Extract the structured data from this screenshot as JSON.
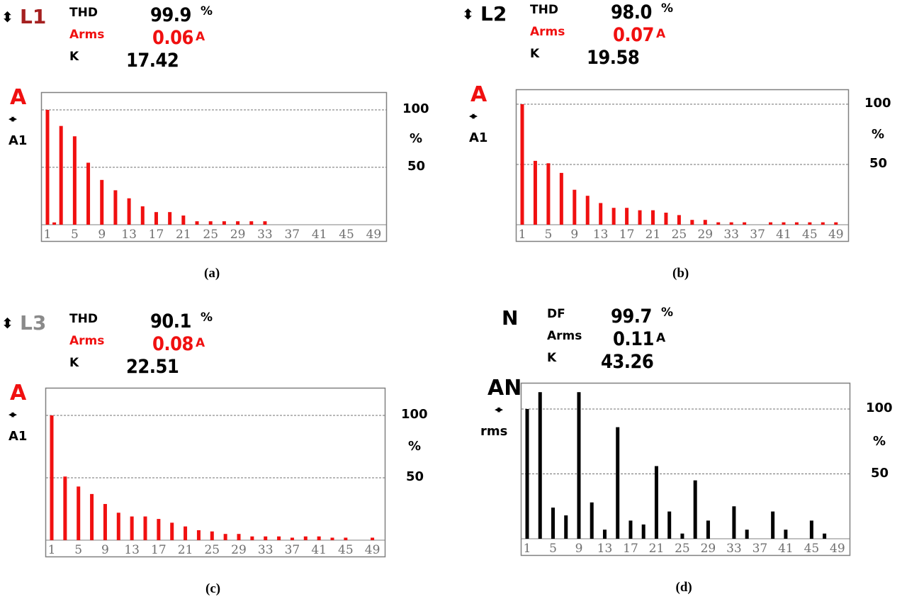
{
  "colors": {
    "red": "#f01010",
    "black": "#000000",
    "frame": "#808080",
    "tick": "#707070",
    "l1": "#a52020",
    "l3": "#8a8a8a"
  },
  "x_tick_labels": [
    "1",
    "5",
    "9",
    "13",
    "17",
    "21",
    "25",
    "29",
    "33",
    "37",
    "41",
    "45",
    "49"
  ],
  "panels": [
    {
      "caption": "(a)",
      "phase": "L1",
      "arrow": "⬍",
      "m1_label": "THD",
      "m1_value": "99.9",
      "m1_unit": "%",
      "m2_label": "Arms",
      "m2_value": "0.06",
      "m2_unit": "A",
      "m3_label": "K",
      "m3_value": "17.42",
      "ch_label": "A",
      "nav_icon": "◂▸",
      "sub_label": "A1",
      "y_top": "100",
      "y_unit": "%",
      "y_mid": "50"
    },
    {
      "caption": "(b)",
      "phase": "L2",
      "arrow": "⬍",
      "m1_label": "THD",
      "m1_value": "98.0",
      "m1_unit": "%",
      "m2_label": "Arms",
      "m2_value": "0.07",
      "m2_unit": "A",
      "m3_label": "K",
      "m3_value": "19.58",
      "ch_label": "A",
      "nav_icon": "◂▸",
      "sub_label": "A1",
      "y_top": "100",
      "y_unit": "%",
      "y_mid": "50"
    },
    {
      "caption": "(c)",
      "phase": "L3",
      "arrow": "⬍",
      "m1_label": "THD",
      "m1_value": "90.1",
      "m1_unit": "%",
      "m2_label": "Arms",
      "m2_value": "0.08",
      "m2_unit": "A",
      "m3_label": "K",
      "m3_value": "22.51",
      "ch_label": "A",
      "nav_icon": "◂▸",
      "sub_label": "A1",
      "y_top": "100",
      "y_unit": "%",
      "y_mid": "50"
    },
    {
      "caption": "(d)",
      "phase": "N",
      "arrow": "",
      "m1_label": "DF",
      "m1_value": "99.7",
      "m1_unit": "%",
      "m2_label": "Arms",
      "m2_value": "0.11",
      "m2_unit": "A",
      "m3_label": "K",
      "m3_value": "43.26",
      "ch_label": "AN",
      "nav_icon": "◂▸",
      "sub_label": "rms",
      "y_top": "100",
      "y_unit": "%",
      "y_mid": "50"
    }
  ],
  "chart_data": [
    {
      "type": "bar",
      "xlabel": "",
      "ylabel": "%",
      "ylim": [
        0,
        115
      ],
      "grid_lines": [
        50,
        100
      ],
      "categories": [
        1,
        2,
        3,
        5,
        7,
        9,
        11,
        13,
        15,
        17,
        19,
        21,
        23,
        25,
        27,
        29,
        31,
        33
      ],
      "values": [
        100,
        2,
        86,
        77,
        54,
        39,
        30,
        23,
        16,
        11,
        11,
        8,
        3,
        3,
        3,
        3,
        3,
        3
      ]
    },
    {
      "type": "bar",
      "xlabel": "",
      "ylabel": "%",
      "ylim": [
        0,
        103
      ],
      "grid_lines": [
        50,
        100
      ],
      "categories": [
        1,
        3,
        5,
        7,
        9,
        11,
        13,
        15,
        17,
        19,
        21,
        23,
        25,
        27,
        29,
        31,
        33,
        35,
        39,
        41,
        43,
        45,
        47,
        49
      ],
      "values": [
        100,
        53,
        51,
        43,
        29,
        24,
        18,
        14,
        14,
        12,
        12,
        10,
        8,
        4,
        4,
        2,
        2,
        2,
        2,
        2,
        2,
        2,
        2,
        2
      ]
    },
    {
      "type": "bar",
      "xlabel": "",
      "ylabel": "%",
      "ylim": [
        0,
        122
      ],
      "grid_lines": [
        50,
        100
      ],
      "categories": [
        1,
        3,
        5,
        7,
        9,
        11,
        13,
        15,
        17,
        19,
        21,
        23,
        25,
        27,
        29,
        31,
        33,
        35,
        37,
        39,
        41,
        43,
        45,
        49
      ],
      "values": [
        100,
        51,
        43,
        37,
        29,
        22,
        19,
        19,
        17,
        14,
        11,
        8,
        7,
        5,
        5,
        3,
        3,
        3,
        2,
        3,
        3,
        2,
        2,
        2
      ]
    },
    {
      "type": "bar",
      "xlabel": "",
      "ylabel": "%",
      "ylim": [
        0,
        113
      ],
      "grid_lines": [
        50,
        100
      ],
      "categories": [
        1,
        3,
        5,
        7,
        9,
        11,
        13,
        15,
        17,
        19,
        21,
        23,
        25,
        27,
        29,
        33,
        35,
        39,
        41,
        45,
        47
      ],
      "values": [
        100,
        113,
        24,
        18,
        113,
        28,
        7,
        86,
        14,
        11,
        56,
        21,
        4,
        45,
        14,
        25,
        7,
        21,
        7,
        14,
        4
      ]
    }
  ]
}
